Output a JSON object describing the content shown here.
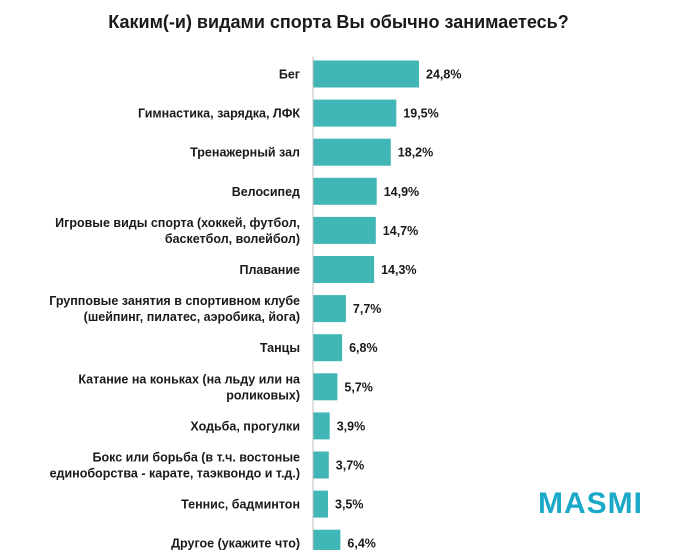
{
  "chart_data": {
    "type": "bar",
    "orientation": "horizontal",
    "title": "Каким(-и) видами спорта Вы обычно занимаетесь?",
    "categories": [
      [
        "Бег"
      ],
      [
        "Гимнастика, зарядка, ЛФК"
      ],
      [
        "Тренажерный зал"
      ],
      [
        "Велосипед"
      ],
      [
        "Игровые виды спорта (хоккей, футбол,",
        "баскетбол, волейбол)"
      ],
      [
        "Плавание"
      ],
      [
        "Групповые занятия в спортивном клубе",
        "(шейпинг, пилатес, аэробика, йога)"
      ],
      [
        "Танцы"
      ],
      [
        "Катание на коньках (на льду или на",
        "роликовых)"
      ],
      [
        "Ходьба, прогулки"
      ],
      [
        "Бокс или борьба (в т.ч. востоные",
        "единоборства - карате, таэквондо и т.д.)"
      ],
      [
        "Теннис, бадминтон"
      ],
      [
        "Другое (укажите что)"
      ]
    ],
    "values": [
      24.8,
      19.5,
      18.2,
      14.9,
      14.7,
      14.3,
      7.7,
      6.8,
      5.7,
      3.9,
      3.7,
      3.5,
      6.4
    ],
    "value_labels": [
      "24,8%",
      "19,5%",
      "18,2%",
      "14,9%",
      "14,7%",
      "14,3%",
      "7,7%",
      "6,8%",
      "5,7%",
      "3,9%",
      "3,7%",
      "3,5%",
      "6,4%"
    ],
    "bar_color": "#40b6b6",
    "grid": false,
    "legend": "none"
  },
  "logo": {
    "text": "MASMI",
    "color": "#1aa9c9"
  }
}
